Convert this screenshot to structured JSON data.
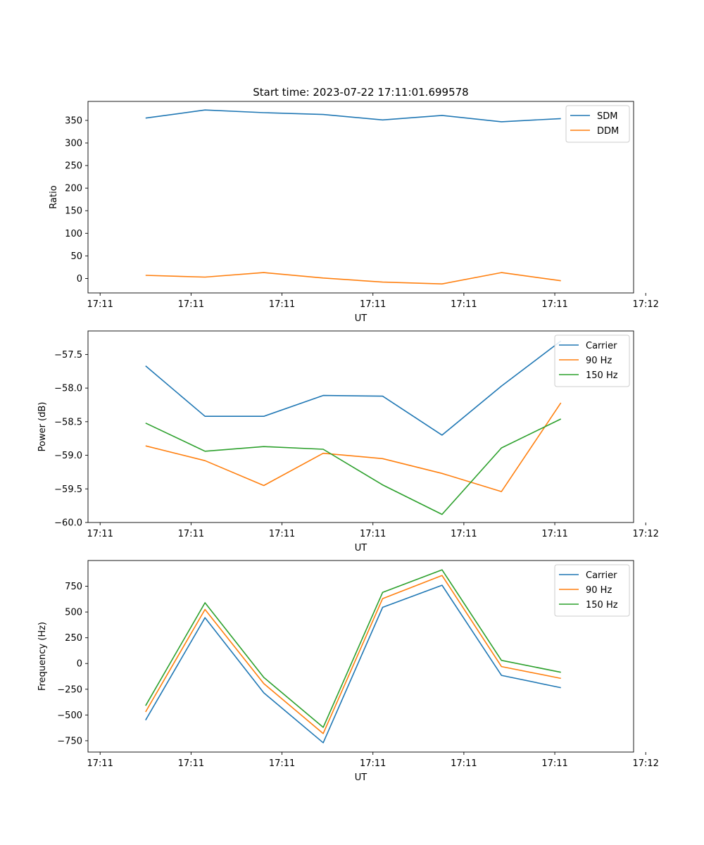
{
  "chart_data": [
    {
      "type": "line",
      "title": "Start time: 2023-07-22 17:11:01.699578",
      "xlabel": "UT",
      "ylabel": "Ratio",
      "xlim": [
        -0.5,
        8.5
      ],
      "ylim": [
        -32,
        392
      ],
      "x_ticks": [
        {
          "pos": -0.3,
          "label": "17:11"
        },
        {
          "pos": 1.2,
          "label": "17:11"
        },
        {
          "pos": 2.7,
          "label": "17:11"
        },
        {
          "pos": 4.2,
          "label": "17:11"
        },
        {
          "pos": 5.7,
          "label": "17:11"
        },
        {
          "pos": 7.2,
          "label": "17:11"
        },
        {
          "pos": 8.7,
          "label": "17:12"
        }
      ],
      "y_ticks": [
        0,
        50,
        100,
        150,
        200,
        250,
        300,
        350
      ],
      "x": [
        0.45,
        1.43,
        2.4,
        3.38,
        4.36,
        5.34,
        6.32,
        7.3
      ],
      "legend": "top-right",
      "series": [
        {
          "name": "SDM",
          "color": "#1f77b4",
          "values": [
            355,
            373,
            367,
            363,
            351,
            361,
            347,
            354
          ]
        },
        {
          "name": "DDM",
          "color": "#ff7f0e",
          "values": [
            7,
            3,
            13,
            1,
            -8,
            -12,
            13,
            -5
          ]
        }
      ]
    },
    {
      "type": "line",
      "title": "",
      "xlabel": "UT",
      "ylabel": "Power (dB)",
      "xlim": [
        -0.5,
        8.5
      ],
      "ylim": [
        -60.0,
        -57.15
      ],
      "x_ticks": [
        {
          "pos": -0.3,
          "label": "17:11"
        },
        {
          "pos": 1.2,
          "label": "17:11"
        },
        {
          "pos": 2.7,
          "label": "17:11"
        },
        {
          "pos": 4.2,
          "label": "17:11"
        },
        {
          "pos": 5.7,
          "label": "17:11"
        },
        {
          "pos": 7.2,
          "label": "17:11"
        },
        {
          "pos": 8.7,
          "label": "17:12"
        }
      ],
      "y_ticks": [
        -60.0,
        -59.5,
        -59.0,
        -58.5,
        -58.0,
        -57.5
      ],
      "y_tick_labels": [
        "−60.0",
        "−59.5",
        "−59.0",
        "−58.5",
        "−58.0",
        "−57.5"
      ],
      "x": [
        0.45,
        1.43,
        2.4,
        3.38,
        4.36,
        5.34,
        6.32,
        7.3
      ],
      "legend": "top-right",
      "series": [
        {
          "name": "Carrier",
          "color": "#1f77b4",
          "values": [
            -57.67,
            -58.42,
            -58.42,
            -58.11,
            -58.12,
            -58.7,
            -57.97,
            -57.3
          ]
        },
        {
          "name": "90 Hz",
          "color": "#ff7f0e",
          "values": [
            -58.86,
            -59.08,
            -59.45,
            -58.97,
            -59.05,
            -59.27,
            -59.54,
            -58.22
          ]
        },
        {
          "name": "150 Hz",
          "color": "#2ca02c",
          "values": [
            -58.52,
            -58.94,
            -58.87,
            -58.91,
            -59.44,
            -59.88,
            -58.89,
            -58.46
          ]
        }
      ]
    },
    {
      "type": "line",
      "title": "",
      "xlabel": "UT",
      "ylabel": "Frequency (Hz)",
      "xlim": [
        -0.5,
        8.5
      ],
      "ylim": [
        -860,
        1000
      ],
      "x_ticks": [
        {
          "pos": -0.3,
          "label": "17:11"
        },
        {
          "pos": 1.2,
          "label": "17:11"
        },
        {
          "pos": 2.7,
          "label": "17:11"
        },
        {
          "pos": 4.2,
          "label": "17:11"
        },
        {
          "pos": 5.7,
          "label": "17:11"
        },
        {
          "pos": 7.2,
          "label": "17:11"
        },
        {
          "pos": 8.7,
          "label": "17:12"
        }
      ],
      "y_ticks": [
        -750,
        -500,
        -250,
        0,
        250,
        500,
        750
      ],
      "y_tick_labels": [
        "−750",
        "−500",
        "−250",
        "0",
        "250",
        "500",
        "750"
      ],
      "x": [
        0.45,
        1.43,
        2.4,
        3.38,
        4.36,
        5.34,
        6.32,
        7.3
      ],
      "legend": "top-right",
      "series": [
        {
          "name": "Carrier",
          "color": "#1f77b4",
          "values": [
            -550,
            445,
            -285,
            -770,
            545,
            760,
            -115,
            -235
          ]
        },
        {
          "name": "90 Hz",
          "color": "#ff7f0e",
          "values": [
            -470,
            525,
            -195,
            -680,
            630,
            855,
            -30,
            -145
          ]
        },
        {
          "name": "150 Hz",
          "color": "#2ca02c",
          "values": [
            -410,
            590,
            -135,
            -620,
            690,
            910,
            30,
            -85
          ]
        }
      ]
    }
  ]
}
